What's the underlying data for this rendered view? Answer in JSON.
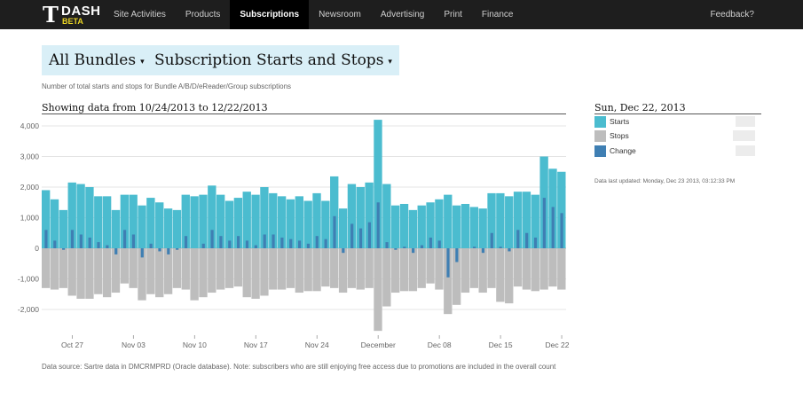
{
  "app": {
    "logo_glyph": "T",
    "logo_name": "DASH",
    "logo_badge": "BETA"
  },
  "nav": {
    "items": [
      "Site Activities",
      "Products",
      "Subscriptions",
      "Newsroom",
      "Advertising",
      "Print",
      "Finance"
    ],
    "active": "Subscriptions",
    "feedback": "Feedback?"
  },
  "controls": {
    "bundle_select": "All Bundles",
    "metric_select": "Subscription Starts and Stops"
  },
  "subtitle": "Number of total starts and stops for Bundle A/B/D/eReader/Group subscriptions",
  "range_text": "Showing data from 10/24/2013 to 12/22/2013",
  "sidebar": {
    "date": "Sun, Dec 22, 2013",
    "legend": [
      {
        "label": "Starts",
        "color": "#4bbccf"
      },
      {
        "label": "Stops",
        "color": "#bdbdbd"
      },
      {
        "label": "Change",
        "color": "#3f7fb3"
      }
    ],
    "updated": "Data last updated: Monday, Dec 23 2013, 03:12:33 PM"
  },
  "footnote": "Data source: Sartre data in DMCRMPRD (Oracle database). Note: subscribers who are still enjoying free access due to promotions are included in the overall count",
  "chart_data": {
    "type": "bar",
    "ylim": [
      -3000,
      4500
    ],
    "yticks": [
      4000,
      3000,
      2000,
      1000,
      0,
      -1000,
      -2000
    ],
    "ytick_labels": [
      "4,000",
      "3,000",
      "2,000",
      "1,000",
      "0",
      "-1,000",
      "-2,000"
    ],
    "x_labels": [
      {
        "label": "Oct 27",
        "index": 3
      },
      {
        "label": "Nov 03",
        "index": 10
      },
      {
        "label": "Nov 10",
        "index": 17
      },
      {
        "label": "Nov 17",
        "index": 24
      },
      {
        "label": "Nov 24",
        "index": 31
      },
      {
        "label": "December",
        "index": 38
      },
      {
        "label": "Dec 08",
        "index": 45
      },
      {
        "label": "Dec 15",
        "index": 52
      },
      {
        "label": "Dec 22",
        "index": 59
      }
    ],
    "series": [
      {
        "name": "Starts",
        "color": "#4bbccf",
        "values": [
          1900,
          1600,
          1250,
          2150,
          2100,
          2000,
          1700,
          1700,
          1250,
          1750,
          1750,
          1400,
          1650,
          1500,
          1300,
          1250,
          1750,
          1700,
          1750,
          2050,
          1750,
          1550,
          1650,
          1850,
          1750,
          2000,
          1800,
          1700,
          1600,
          1700,
          1550,
          1800,
          1550,
          2350,
          1300,
          2100,
          2000,
          2150,
          4200,
          2100,
          1400,
          1450,
          1250,
          1400,
          1500,
          1600,
          1750,
          1400,
          1450,
          1350,
          1300,
          1800,
          1800,
          1700,
          1850,
          1850,
          1750,
          3000,
          2600,
          2500
        ]
      },
      {
        "name": "Stops",
        "color": "#bdbdbd",
        "values": [
          -1300,
          -1350,
          -1300,
          -1550,
          -1650,
          -1650,
          -1500,
          -1600,
          -1450,
          -1150,
          -1300,
          -1700,
          -1500,
          -1600,
          -1500,
          -1300,
          -1350,
          -1700,
          -1600,
          -1450,
          -1350,
          -1300,
          -1250,
          -1600,
          -1650,
          -1550,
          -1350,
          -1350,
          -1300,
          -1450,
          -1400,
          -1400,
          -1250,
          -1300,
          -1450,
          -1300,
          -1350,
          -1300,
          -2700,
          -1900,
          -1450,
          -1400,
          -1400,
          -1300,
          -1150,
          -1350,
          -2150,
          -1850,
          -1450,
          -1300,
          -1450,
          -1300,
          -1750,
          -1800,
          -1250,
          -1350,
          -1400,
          -1350,
          -1250,
          -1350
        ]
      },
      {
        "name": "Change",
        "color": "#3f7fb3",
        "values": [
          600,
          250,
          -50,
          600,
          450,
          350,
          200,
          100,
          -200,
          600,
          450,
          -300,
          150,
          -100,
          -200,
          -50,
          400,
          0,
          150,
          600,
          400,
          250,
          400,
          250,
          100,
          450,
          450,
          350,
          300,
          250,
          150,
          400,
          300,
          1050,
          -150,
          800,
          650,
          850,
          1500,
          200,
          -50,
          50,
          -150,
          100,
          350,
          250,
          -950,
          -450,
          0,
          50,
          -150,
          500,
          50,
          -100,
          600,
          500,
          350,
          1650,
          1350,
          1150
        ]
      }
    ]
  }
}
